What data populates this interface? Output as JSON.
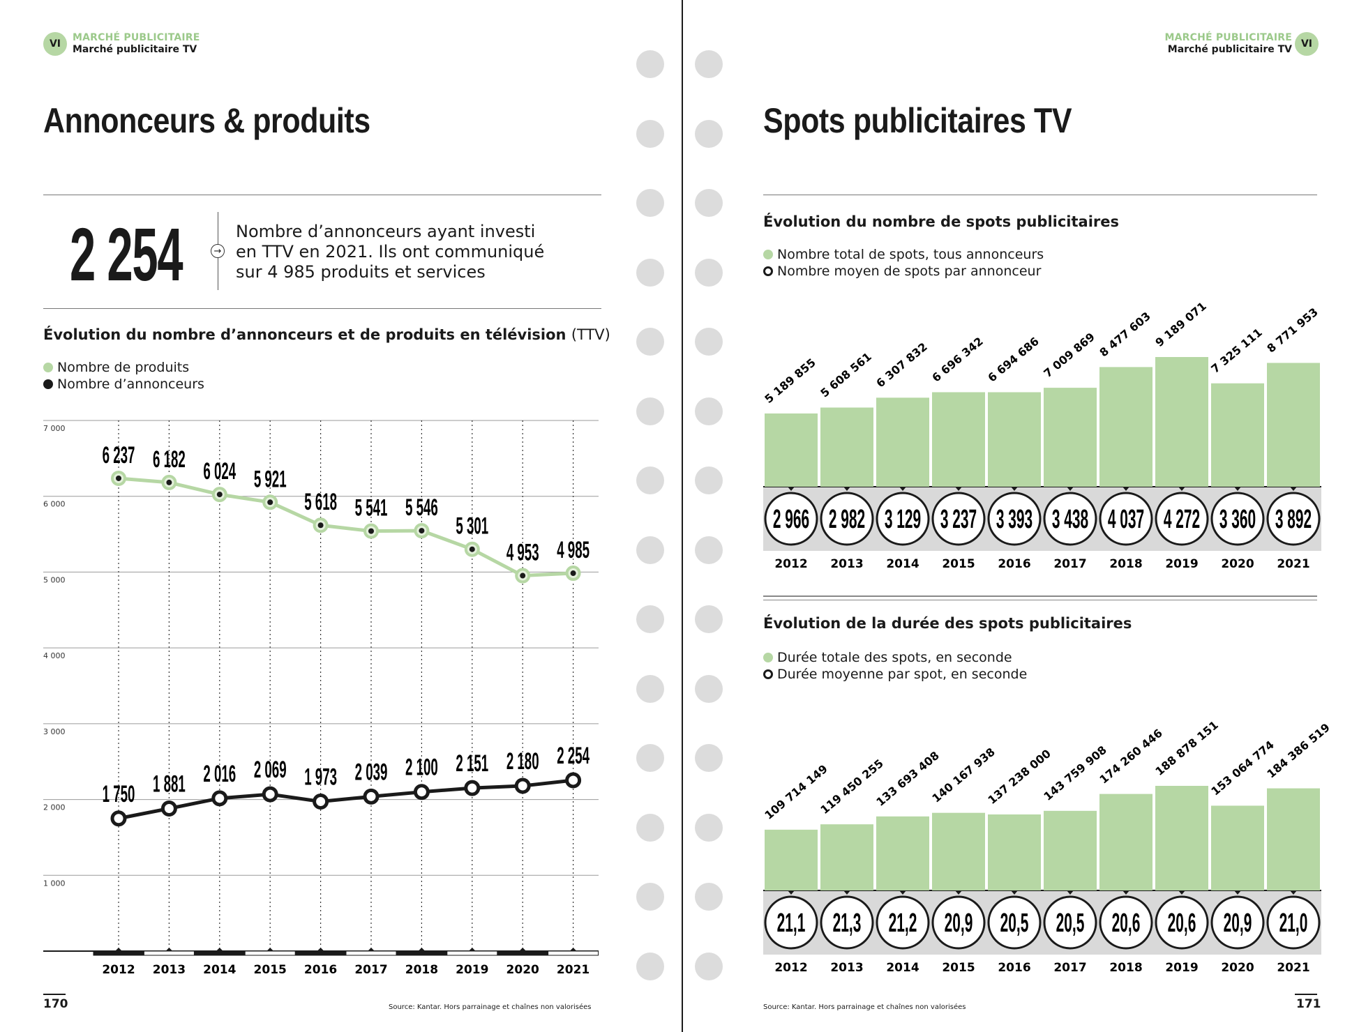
{
  "left_page": {
    "badge": "VI",
    "section": "MARCHÉ PUBLICITAIRE",
    "subsection": "Marché publicitaire TV",
    "title": "Annonceurs & produits",
    "kpi": {
      "value": "2 254",
      "description": "Nombre d’annonceurs ayant investi en TTV en 2021. Ils ont communiqué sur 4 985 produits et services"
    },
    "chart_title": "Évolution du nombre d’annonceurs et de produits en télévision",
    "chart_title_suffix": "(TTV)",
    "legend": [
      "Nombre de produits",
      "Nombre d’annonceurs"
    ],
    "page_number": "170",
    "source": "Source: Kantar. Hors parrainage et chaînes non valorisées"
  },
  "right_page": {
    "badge": "VI",
    "section": "MARCHÉ PUBLICITAIRE",
    "subsection": "Marché publicitaire TV",
    "title": "Spots publicitaires TV",
    "chart1_title": "Évolution du nombre de spots publicitaires",
    "chart1_legend": [
      "Nombre total de spots, tous annonceurs",
      "Nombre moyen de spots par annonceur"
    ],
    "chart2_title": "Évolution de la durée des spots publicitaires",
    "chart2_legend": [
      "Durée totale des spots, en seconde",
      "Durée moyenne par spot, en seconde"
    ],
    "page_number": "171",
    "source": "Source: Kantar. Hors parrainage et chaînes non valorisées"
  },
  "colors": {
    "green": "#b6d7a4",
    "dark": "#1a1a1a",
    "band": "#d9d9d9"
  },
  "chart_data": [
    {
      "type": "line",
      "title": "Évolution du nombre d’annonceurs et de produits en télévision (TTV)",
      "x": [
        "2012",
        "2013",
        "2014",
        "2015",
        "2016",
        "2017",
        "2018",
        "2019",
        "2020",
        "2021"
      ],
      "yticks": [
        "1 000",
        "2 000",
        "3 000",
        "4 000",
        "5 000",
        "6 000",
        "7 000"
      ],
      "ylim": [
        0,
        7000
      ],
      "grid": true,
      "series": [
        {
          "name": "Nombre de produits",
          "values": [
            6237,
            6182,
            6024,
            5921,
            5618,
            5541,
            5546,
            5301,
            4953,
            4985
          ],
          "labels": [
            "6 237",
            "6 182",
            "6 024",
            "5 921",
            "5 618",
            "5 541",
            "5 546",
            "5 301",
            "4 953",
            "4 985"
          ]
        },
        {
          "name": "Nombre d’annonceurs",
          "values": [
            1750,
            1881,
            2016,
            2069,
            1973,
            2039,
            2100,
            2151,
            2180,
            2254
          ],
          "labels": [
            "1 750",
            "1 881",
            "2 016",
            "2 069",
            "1 973",
            "2 039",
            "2 100",
            "2 151",
            "2 180",
            "2 254"
          ]
        }
      ]
    },
    {
      "type": "bar",
      "title": "Évolution du nombre de spots publicitaires",
      "categories": [
        "2012",
        "2013",
        "2014",
        "2015",
        "2016",
        "2017",
        "2018",
        "2019",
        "2020",
        "2021"
      ],
      "series": [
        {
          "name": "Nombre total de spots, tous annonceurs",
          "values": [
            5189855,
            5608561,
            6307832,
            6696342,
            6694686,
            7009869,
            8477603,
            9189071,
            7325111,
            8771953
          ],
          "labels": [
            "5 189 855",
            "5 608 561",
            "6 307 832",
            "6 696 342",
            "6 694 686",
            "7 009 869",
            "8 477 603",
            "9 189 071",
            "7 325 111",
            "8 771 953"
          ]
        },
        {
          "name": "Nombre moyen de spots par annonceur",
          "values": [
            2966,
            2982,
            3129,
            3237,
            3393,
            3438,
            4037,
            4272,
            3360,
            3892
          ],
          "labels": [
            "2 966",
            "2 982",
            "3 129",
            "3 237",
            "3 393",
            "3 438",
            "4 037",
            "4 272",
            "3 360",
            "3 892"
          ]
        }
      ]
    },
    {
      "type": "bar",
      "title": "Évolution de la durée des spots publicitaires",
      "categories": [
        "2012",
        "2013",
        "2014",
        "2015",
        "2016",
        "2017",
        "2018",
        "2019",
        "2020",
        "2021"
      ],
      "series": [
        {
          "name": "Durée totale des spots, en seconde",
          "values": [
            109714149,
            119450255,
            133693408,
            140167938,
            137238000,
            143759908,
            174260446,
            188878151,
            153064774,
            184386519
          ],
          "labels": [
            "109 714 149",
            "119 450 255",
            "133 693 408",
            "140 167 938",
            "137 238 000",
            "143 759 908",
            "174 260 446",
            "188 878 151",
            "153 064 774",
            "184 386 519"
          ]
        },
        {
          "name": "Durée moyenne par spot, en seconde",
          "values": [
            21.1,
            21.3,
            21.2,
            20.9,
            20.5,
            20.5,
            20.6,
            20.6,
            20.9,
            21.0
          ],
          "labels": [
            "21,1",
            "21,3",
            "21,2",
            "20,9",
            "20,5",
            "20,5",
            "20,6",
            "20,6",
            "20,9",
            "21,0"
          ]
        }
      ]
    }
  ]
}
